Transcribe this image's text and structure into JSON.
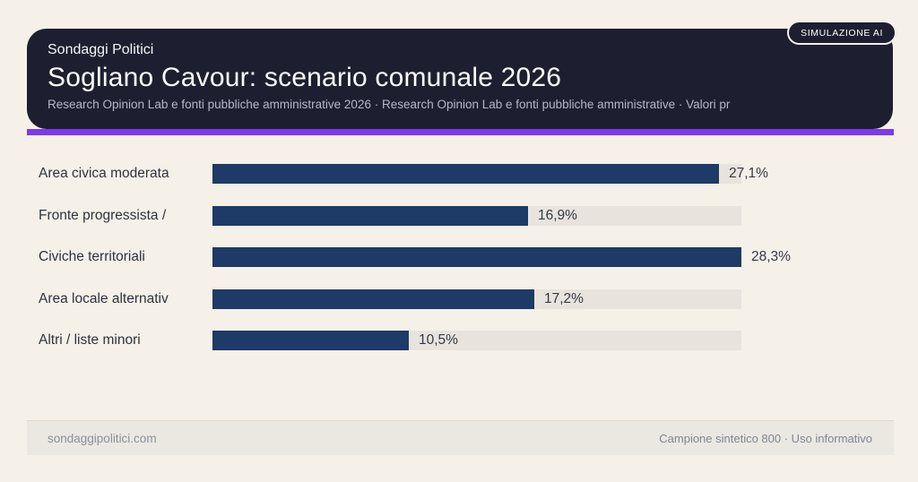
{
  "page": {
    "background_color": "#f5f0e8",
    "accent_color": "#7c3aed",
    "card_color": "#1d1f31"
  },
  "header": {
    "kicker": "Sondaggi Politici",
    "title": "Sogliano Cavour: scenario comunale 2026",
    "subtitle": "Research Opinion Lab e fonti pubbliche amministrative 2026 · Research Opinion Lab e fonti pubbliche amministrative · Valori pr",
    "badge": "SIMULAZIONE AI"
  },
  "chart_data": {
    "type": "bar",
    "orientation": "horizontal",
    "title": "Sogliano Cavour: scenario comunale 2026",
    "categories": [
      "Area civica moderata",
      "Fronte progressista /",
      "Civiche territoriali",
      "Area locale alternativ",
      "Altri / liste minori"
    ],
    "values": [
      27.1,
      16.9,
      28.3,
      17.2,
      10.5
    ],
    "value_labels": [
      "27,1%",
      "16,9%",
      "28,3%",
      "17,2%",
      "10,5%"
    ],
    "unit": "%",
    "xlim": [
      0,
      28.3
    ],
    "bar_color": "#1e3a66",
    "track_color": "#e8e4dd",
    "grid": false,
    "legend": false
  },
  "footer": {
    "left": "sondaggipolitici.com",
    "right": "Campione sintetico 800 · Uso informativo"
  }
}
